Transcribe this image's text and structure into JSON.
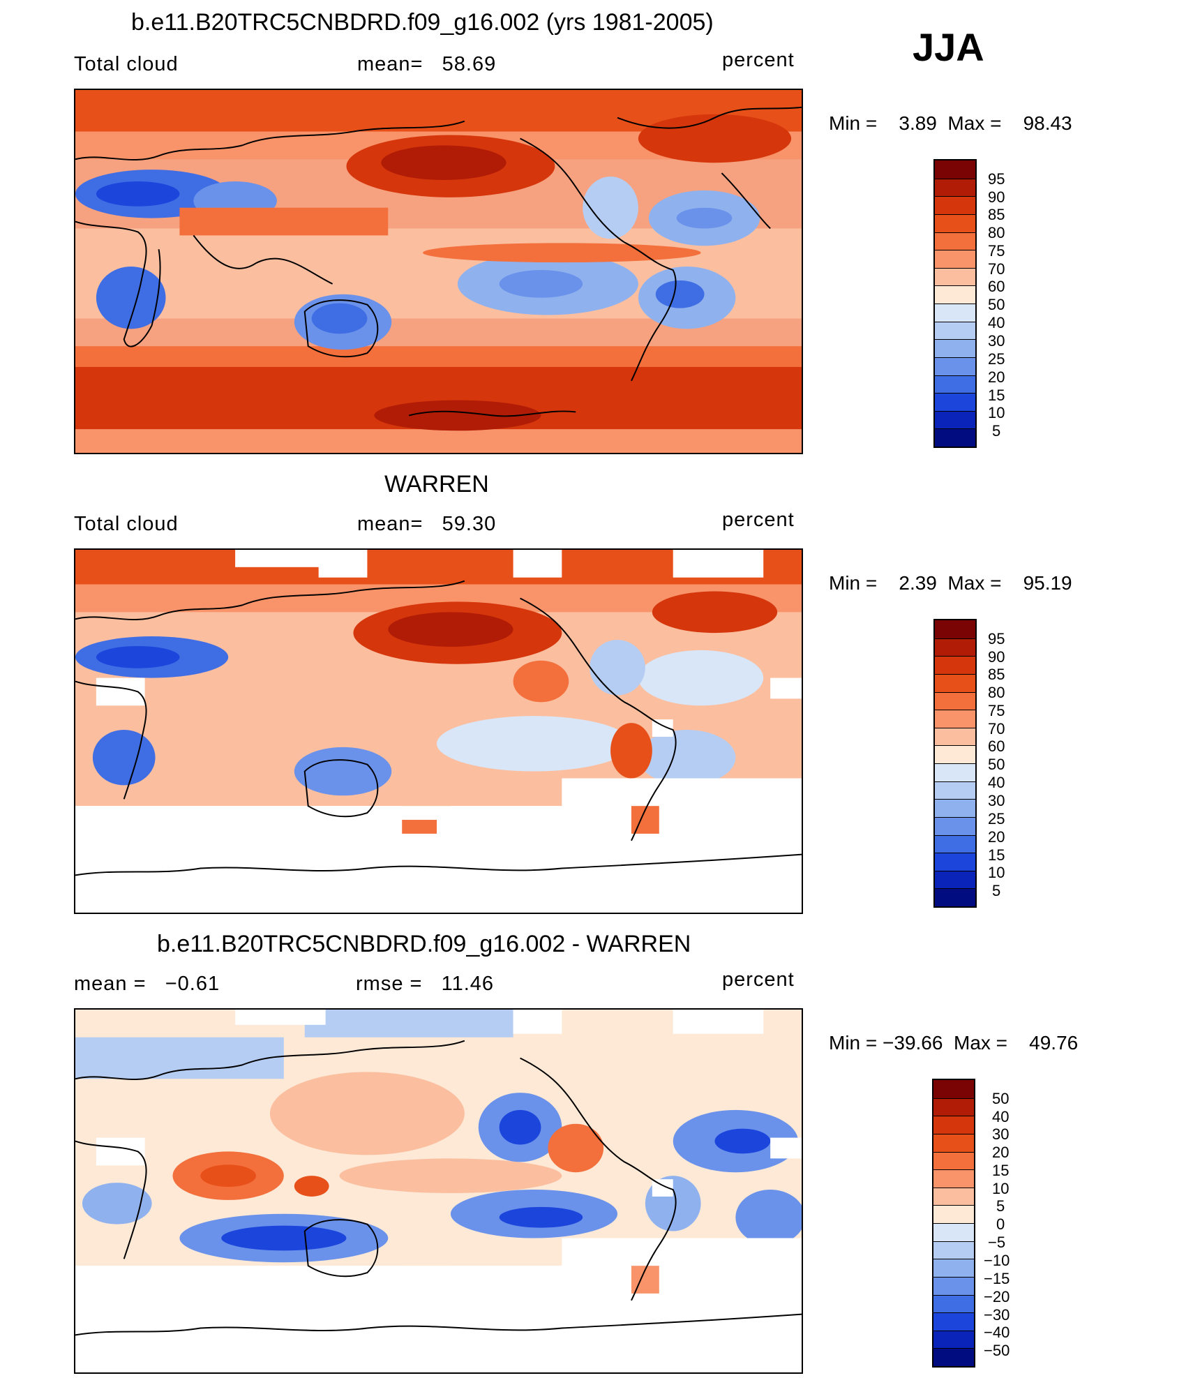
{
  "season": "JJA",
  "panels": [
    {
      "title": "b.e11.B20TRC5CNBDRD.f09_g16.002 (yrs 1981-2005)",
      "left_label": "Total cloud",
      "center_label": "mean=   58.69",
      "units": "percent",
      "minmax": "Min =    3.89  Max =    98.43",
      "colorbar_ticks": [
        "95",
        "90",
        "85",
        "80",
        "75",
        "70",
        "60",
        "50",
        "40",
        "30",
        "25",
        "20",
        "15",
        "10",
        "5"
      ],
      "colorbar_colors": [
        "#7a0403",
        "#b11c07",
        "#d6360b",
        "#e8501a",
        "#f36f3c",
        "#f8936a",
        "#fbbfa0",
        "#fde9d6",
        "#d9e6f7",
        "#b5cdf3",
        "#8fb2ef",
        "#6a92ea",
        "#3f6ee4",
        "#1c45dc",
        "#0a23b8",
        "#000c7f"
      ]
    },
    {
      "title": "WARREN",
      "left_label": "Total cloud",
      "center_label": "mean=   59.30",
      "units": "percent",
      "minmax": "Min =    2.39  Max =    95.19",
      "colorbar_ticks": [
        "95",
        "90",
        "85",
        "80",
        "75",
        "70",
        "60",
        "50",
        "40",
        "30",
        "25",
        "20",
        "15",
        "10",
        "5"
      ],
      "colorbar_colors": [
        "#7a0403",
        "#b11c07",
        "#d6360b",
        "#e8501a",
        "#f36f3c",
        "#f8936a",
        "#fbbfa0",
        "#fde9d6",
        "#d9e6f7",
        "#b5cdf3",
        "#8fb2ef",
        "#6a92ea",
        "#3f6ee4",
        "#1c45dc",
        "#0a23b8",
        "#000c7f"
      ]
    },
    {
      "title": "b.e11.B20TRC5CNBDRD.f09_g16.002 - WARREN",
      "left_label": "mean =   −0.61",
      "center_label": "rmse =   11.46",
      "units": "percent",
      "minmax": "Min = −39.66  Max =    49.76",
      "colorbar_ticks": [
        "50",
        "40",
        "30",
        "20",
        "15",
        "10",
        "5",
        "0",
        "−5",
        "−10",
        "−15",
        "−20",
        "−30",
        "−40",
        "−50"
      ],
      "colorbar_colors": [
        "#7a0403",
        "#b11c07",
        "#d6360b",
        "#e8501a",
        "#f36f3c",
        "#f8936a",
        "#fbbfa0",
        "#fde9d6",
        "#d9e6f7",
        "#b5cdf3",
        "#8fb2ef",
        "#6a92ea",
        "#3f6ee4",
        "#1c45dc",
        "#0a23b8",
        "#000c7f"
      ]
    }
  ]
}
